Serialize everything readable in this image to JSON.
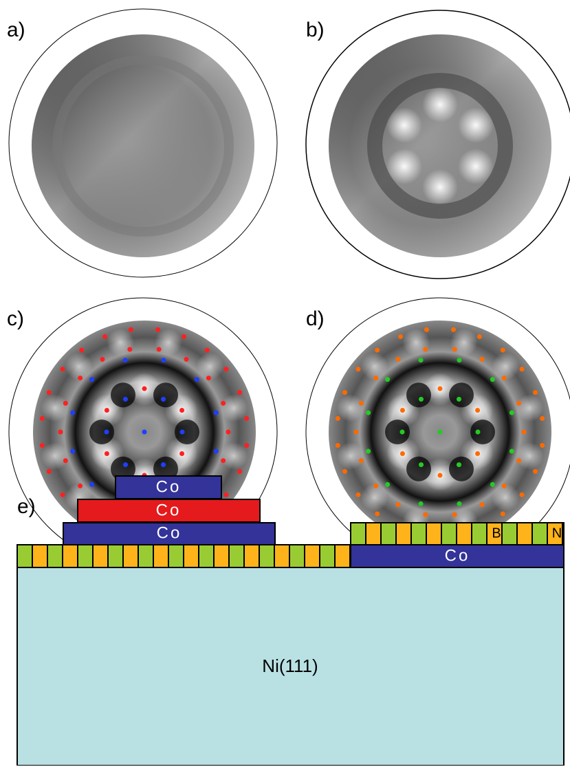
{
  "panels": [
    {
      "label": "a)"
    },
    {
      "label": "b)"
    },
    {
      "label": "c)"
    },
    {
      "label": "d)"
    }
  ],
  "diagram": {
    "label": "e)",
    "stack": [
      "Co",
      "Co",
      "Co"
    ],
    "right_layer": "Co",
    "boron": "B",
    "nitrogen": "N",
    "substrate": "Ni(111)"
  }
}
